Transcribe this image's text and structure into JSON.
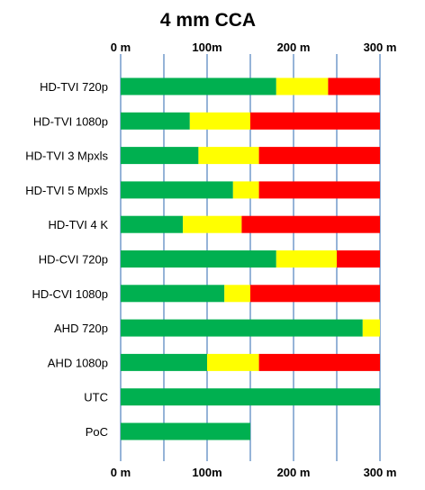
{
  "chart_data": {
    "type": "bar",
    "stacked": true,
    "orientation": "horizontal",
    "title": "4 mm CCA",
    "xlim": [
      0,
      300
    ],
    "x_ticks": [
      {
        "value": 0,
        "label": "0 m"
      },
      {
        "value": 100,
        "label": "100m"
      },
      {
        "value": 200,
        "label": "200 m"
      },
      {
        "value": 300,
        "label": "300 m"
      }
    ],
    "gridlines_at": [
      0,
      50,
      100,
      150,
      200,
      250,
      300
    ],
    "grid": true,
    "legend": "none",
    "categories": [
      "HD-TVI 720p",
      "HD-TVI 1080p",
      "HD-TVI 3 Mpxls",
      "HD-TVI 5 Mpxls",
      "HD-TVI 4 K",
      "HD-CVI 720p",
      "HD-CVI 1080p",
      "AHD 720p",
      "AHD 1080p",
      "UTC",
      "PoC"
    ],
    "series": [
      {
        "color": "#00b050",
        "values": [
          180,
          80,
          90,
          130,
          72,
          180,
          120,
          280,
          100,
          300,
          150
        ]
      },
      {
        "color": "#ffff00",
        "values": [
          60,
          70,
          70,
          30,
          68,
          70,
          30,
          20,
          60,
          0,
          0
        ]
      },
      {
        "color": "#ff0000",
        "values": [
          60,
          150,
          140,
          140,
          160,
          50,
          150,
          0,
          140,
          0,
          0
        ]
      }
    ]
  }
}
